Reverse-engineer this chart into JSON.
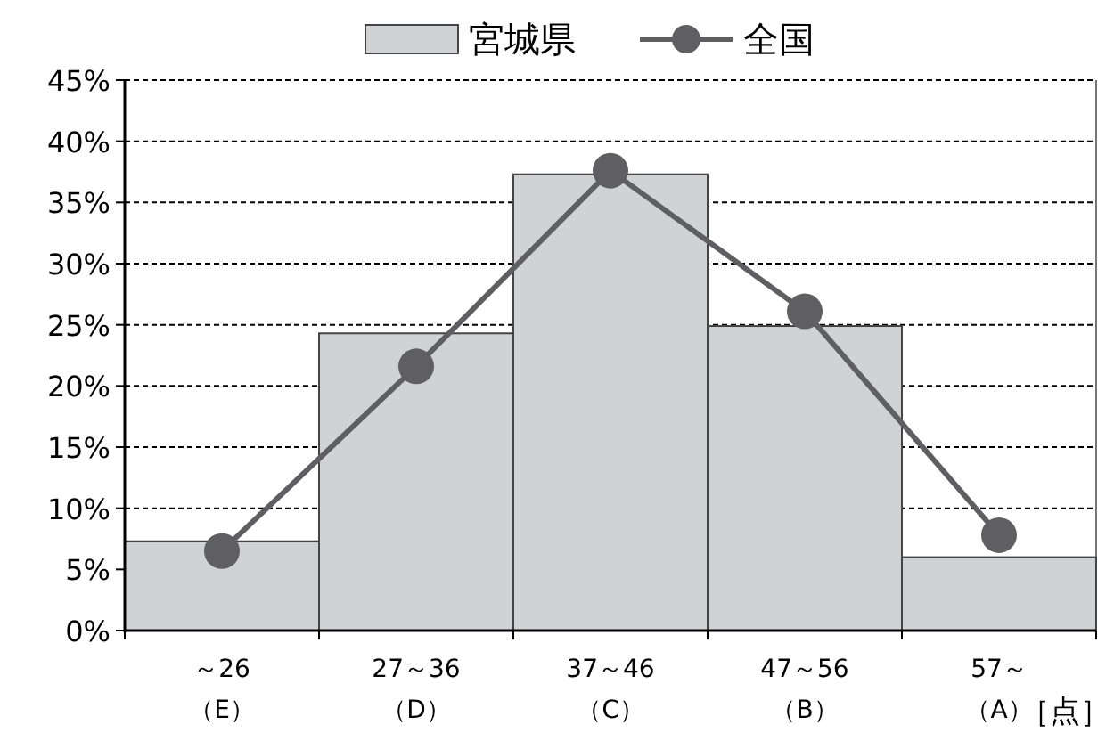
{
  "chart_data": {
    "type": "bar",
    "categories": [
      "～26（E）",
      "27～36（D）",
      "37～46（C）",
      "47～56（B）",
      "57～（A）"
    ],
    "series": [
      {
        "name": "宮城県",
        "color": "#d1d2d4",
        "values": [
          7.3,
          24.3,
          37.3,
          24.9,
          6.0
        ]
      },
      {
        "name": "全国",
        "type": "line",
        "color": "#5f5f61",
        "marker": "circle",
        "values": [
          6.5,
          21.6,
          37.6,
          26.1,
          7.8
        ]
      }
    ],
    "xlabel": "［点］",
    "ylim": [
      0,
      45
    ],
    "yticks": [
      {
        "value": 0,
        "label": "0%"
      },
      {
        "value": 5,
        "label": "5%"
      },
      {
        "value": 10,
        "label": "10%"
      },
      {
        "value": 15,
        "label": "15%"
      },
      {
        "value": 20,
        "label": "20%"
      },
      {
        "value": 25,
        "label": "25%"
      },
      {
        "value": 30,
        "label": "30%"
      },
      {
        "value": 35,
        "label": "35%"
      },
      {
        "value": 40,
        "label": "40%"
      },
      {
        "value": 45,
        "label": "45%"
      }
    ],
    "grid": "y",
    "legend": "top"
  }
}
